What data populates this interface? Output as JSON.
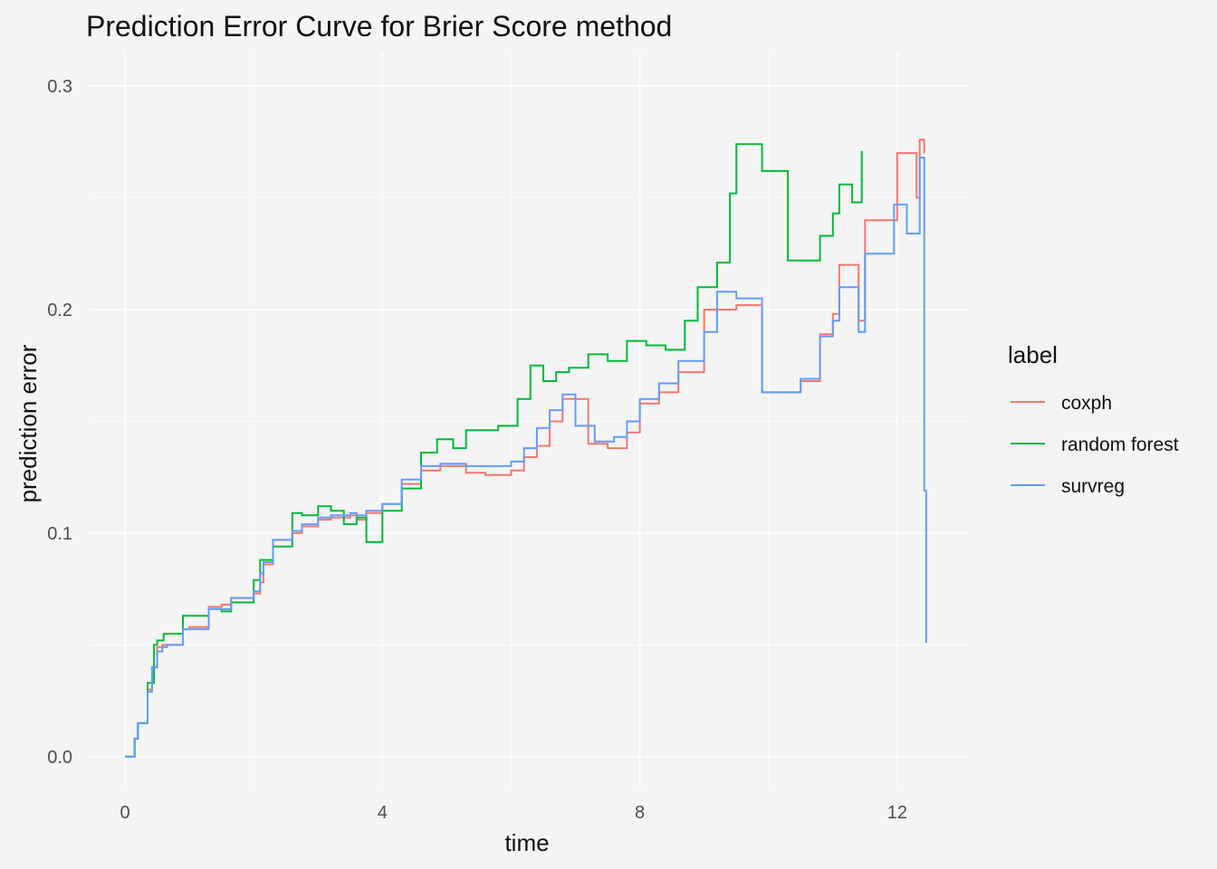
{
  "chart_data": {
    "type": "line",
    "step": true,
    "title": "Prediction Error Curve for Brier Score method",
    "xlabel": "time",
    "ylabel": "prediction error",
    "xlim": [
      -0.55,
      13.1
    ],
    "ylim": [
      -0.013,
      0.315
    ],
    "x_ticks": [
      0,
      4,
      8,
      12
    ],
    "x_tick_labels": [
      "0",
      "4",
      "8",
      "12"
    ],
    "y_ticks": [
      0.0,
      0.1,
      0.2,
      0.3
    ],
    "y_tick_labels": [
      "0.0",
      "0.1",
      "0.2",
      "0.3"
    ],
    "grid": true,
    "legend": {
      "title": "label",
      "position": "right"
    },
    "series": [
      {
        "name": "coxph",
        "color": "#f8766d",
        "x": [
          0,
          0.15,
          0.2,
          0.35,
          0.42,
          0.5,
          0.58,
          0.65,
          0.9,
          1.0,
          1.3,
          1.5,
          1.65,
          2.0,
          2.1,
          2.15,
          2.3,
          2.6,
          2.75,
          3.0,
          3.2,
          3.5,
          3.6,
          3.75,
          4.0,
          4.3,
          4.6,
          4.9,
          5.3,
          5.6,
          6.0,
          6.2,
          6.4,
          6.6,
          6.8,
          7.2,
          7.5,
          7.8,
          8.0,
          8.3,
          8.6,
          9.0,
          9.5,
          9.9,
          10.5,
          10.8,
          11.0,
          11.1,
          11.4,
          11.5,
          12.0,
          12.3,
          12.35,
          12.42
        ],
        "y": [
          0.0,
          0.008,
          0.015,
          0.03,
          0.04,
          0.049,
          0.05,
          0.05,
          0.057,
          0.058,
          0.067,
          0.068,
          0.071,
          0.073,
          0.078,
          0.086,
          0.097,
          0.1,
          0.103,
          0.106,
          0.107,
          0.108,
          0.106,
          0.109,
          0.113,
          0.122,
          0.128,
          0.13,
          0.127,
          0.126,
          0.128,
          0.134,
          0.139,
          0.15,
          0.16,
          0.14,
          0.138,
          0.145,
          0.158,
          0.163,
          0.172,
          0.2,
          0.202,
          0.163,
          0.168,
          0.189,
          0.198,
          0.22,
          0.195,
          0.24,
          0.27,
          0.25,
          0.276,
          0.27
        ]
      },
      {
        "name": "random forest",
        "color": "#00ba38",
        "x": [
          0,
          0.15,
          0.2,
          0.35,
          0.45,
          0.5,
          0.6,
          0.9,
          1.3,
          1.5,
          1.65,
          2.0,
          2.1,
          2.3,
          2.6,
          2.75,
          3.0,
          3.2,
          3.4,
          3.6,
          3.75,
          4.0,
          4.3,
          4.6,
          4.85,
          5.1,
          5.3,
          5.5,
          5.8,
          6.1,
          6.3,
          6.5,
          6.7,
          6.9,
          7.2,
          7.5,
          7.8,
          8.1,
          8.4,
          8.7,
          8.9,
          9.2,
          9.4,
          9.5,
          9.9,
          10.3,
          10.6,
          10.8,
          11.0,
          11.1,
          11.3,
          11.45
        ],
        "y": [
          0.0,
          0.008,
          0.015,
          0.033,
          0.05,
          0.052,
          0.055,
          0.063,
          0.066,
          0.065,
          0.069,
          0.079,
          0.088,
          0.094,
          0.109,
          0.108,
          0.112,
          0.11,
          0.104,
          0.107,
          0.096,
          0.11,
          0.12,
          0.136,
          0.142,
          0.138,
          0.146,
          0.146,
          0.148,
          0.16,
          0.175,
          0.168,
          0.172,
          0.174,
          0.18,
          0.177,
          0.186,
          0.184,
          0.182,
          0.195,
          0.21,
          0.221,
          0.252,
          0.274,
          0.262,
          0.222,
          0.222,
          0.233,
          0.243,
          0.256,
          0.248,
          0.271
        ]
      },
      {
        "name": "survreg",
        "color": "#619cff",
        "x": [
          0,
          0.15,
          0.2,
          0.35,
          0.42,
          0.5,
          0.58,
          0.65,
          0.9,
          1.0,
          1.3,
          1.5,
          1.65,
          2.0,
          2.1,
          2.15,
          2.3,
          2.6,
          2.75,
          3.0,
          3.2,
          3.5,
          3.6,
          3.75,
          4.0,
          4.3,
          4.6,
          4.9,
          5.3,
          6.0,
          6.2,
          6.4,
          6.6,
          6.8,
          7.0,
          7.3,
          7.6,
          7.8,
          8.0,
          8.3,
          8.6,
          9.0,
          9.2,
          9.5,
          9.9,
          10.5,
          10.8,
          11.0,
          11.1,
          11.4,
          11.5,
          11.95,
          12.15,
          12.35,
          12.42,
          12.45
        ],
        "y": [
          0.0,
          0.008,
          0.015,
          0.029,
          0.04,
          0.047,
          0.049,
          0.05,
          0.057,
          0.057,
          0.066,
          0.066,
          0.071,
          0.074,
          0.082,
          0.087,
          0.097,
          0.101,
          0.104,
          0.107,
          0.108,
          0.109,
          0.108,
          0.11,
          0.113,
          0.124,
          0.13,
          0.131,
          0.13,
          0.132,
          0.138,
          0.147,
          0.155,
          0.162,
          0.148,
          0.141,
          0.143,
          0.15,
          0.16,
          0.167,
          0.177,
          0.19,
          0.208,
          0.205,
          0.163,
          0.169,
          0.188,
          0.195,
          0.21,
          0.19,
          0.225,
          0.247,
          0.234,
          0.268,
          0.119,
          0.051
        ]
      }
    ]
  }
}
